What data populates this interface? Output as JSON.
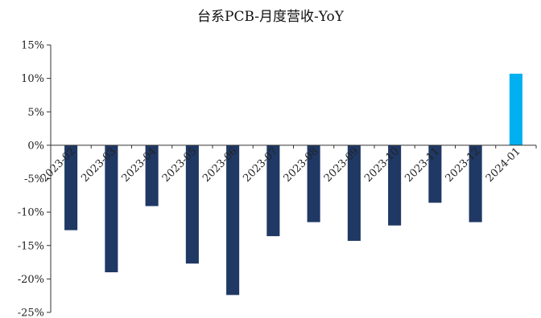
{
  "chart_data": {
    "type": "bar",
    "title": "台系PCB-月度营收-YoY",
    "xlabel": "",
    "ylabel": "",
    "categories": [
      "2023-02",
      "2023-03",
      "2023-04",
      "2023-05",
      "2023-06",
      "2023-07",
      "2023-08",
      "2023-09",
      "2023-10",
      "2023-11",
      "2023-12",
      "2024-01"
    ],
    "values": [
      -12.7,
      -19.0,
      -9.1,
      -17.7,
      -22.4,
      -13.6,
      -11.5,
      -14.3,
      -12.0,
      -8.6,
      -11.5,
      10.7
    ],
    "ylim": [
      -25,
      15
    ],
    "yticks": [
      15,
      10,
      5,
      0,
      -5,
      -10,
      -15,
      -20,
      -25
    ],
    "ytick_labels": [
      "15%",
      "10%",
      "5%",
      "0%",
      "-5%",
      "-10%",
      "-15%",
      "-20%",
      "-25%"
    ],
    "grid": false,
    "legend": "none",
    "colors": {
      "negative": "#1f3864",
      "positive": "#00b0f0"
    }
  }
}
